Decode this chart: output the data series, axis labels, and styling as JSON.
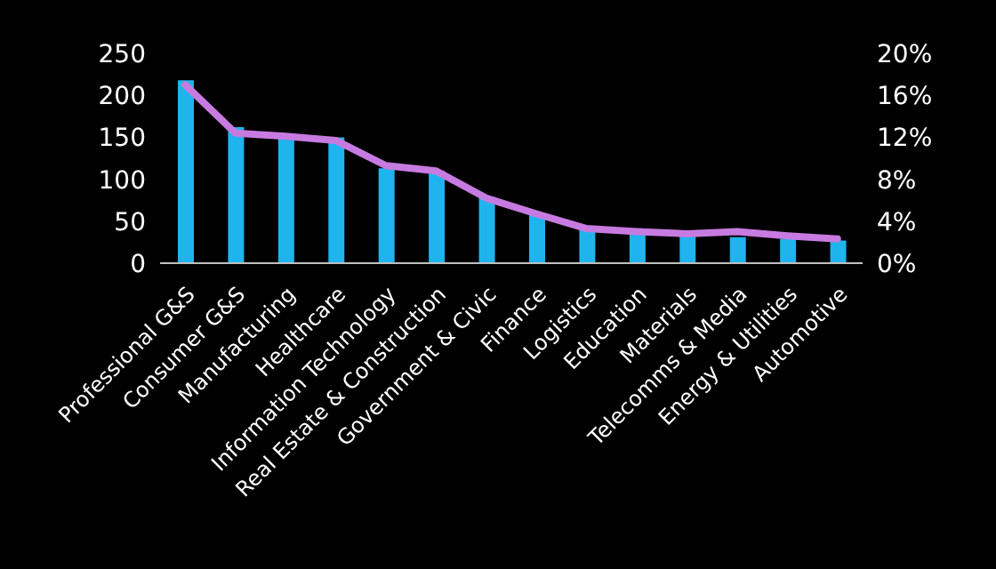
{
  "chart_data": {
    "type": "bar",
    "categories": [
      "Professional G&S",
      "Consumer G&S",
      "Manufacturing",
      "Healthcare",
      "Information Technology",
      "Real Estate & Construction",
      "Government & Civic",
      "Finance",
      "Logistics",
      "Education",
      "Materials",
      "Telecomms & Media",
      "Energy & Utilities",
      "Automotive"
    ],
    "series": [
      {
        "color": "#1fb4ee",
        "values": [
          218,
          162,
          152,
          150,
          113,
          110,
          79,
          58,
          41,
          35,
          33,
          31,
          29,
          27
        ]
      },
      {
        "type": "line",
        "axis": "y2",
        "color": "#c77be0",
        "values": [
          17.0,
          12.4,
          12.1,
          11.7,
          9.3,
          8.8,
          6.2,
          4.7,
          3.3,
          3.0,
          2.8,
          3.0,
          2.6,
          2.3
        ]
      }
    ],
    "ylim": [
      0,
      250
    ],
    "yticks": [
      0,
      50,
      100,
      150,
      200,
      250
    ],
    "y2lim": [
      0,
      20
    ],
    "y2ticks": [
      {
        "value": 0,
        "label": "0%"
      },
      {
        "value": 4,
        "label": "4%"
      },
      {
        "value": 8,
        "label": "8%"
      },
      {
        "value": 12,
        "label": "12%"
      },
      {
        "value": 16,
        "label": "16%"
      },
      {
        "value": 20,
        "label": "20%"
      }
    ],
    "grid": false,
    "legend": false,
    "marker": "none"
  }
}
